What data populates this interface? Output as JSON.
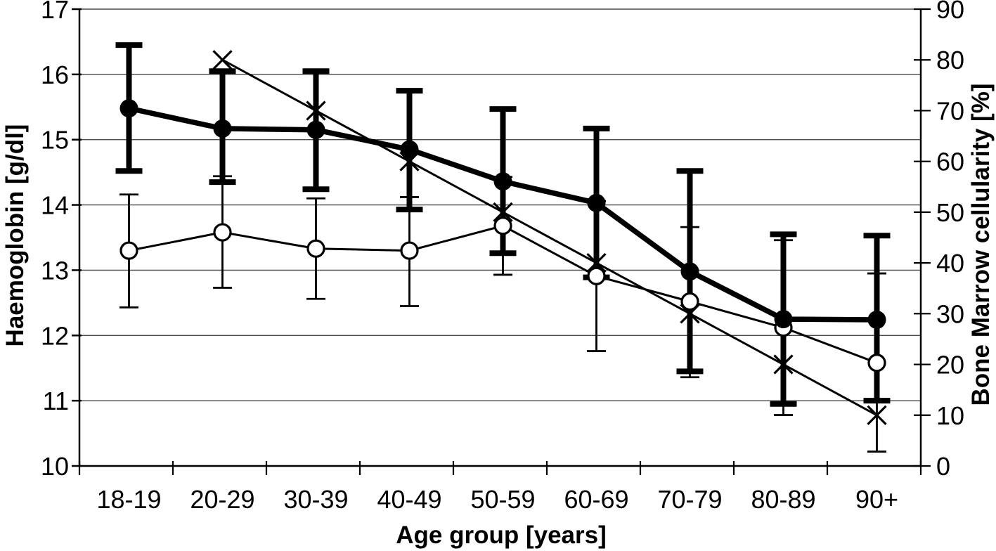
{
  "figure": {
    "background_color": "#ffffff",
    "ink_color": "#000000",
    "grid_color": "#4a4a4a"
  },
  "chart_data": {
    "type": "line",
    "title": "",
    "legend": "none",
    "grid": "horizontal",
    "x_axis": {
      "label": "Age group [years]",
      "categories": [
        "18-19",
        "20-29",
        "30-39",
        "40-49",
        "50-59",
        "60-69",
        "70-79",
        "80-89",
        "90+"
      ]
    },
    "y_axis_left": {
      "label": "Haemoglobin [g/dl]",
      "min": 10,
      "max": 17,
      "ticks": [
        10,
        11,
        12,
        13,
        14,
        15,
        16,
        17
      ]
    },
    "y_axis_right": {
      "label": "Bone Marrow cellularity [%]",
      "min": 0,
      "max": 90,
      "ticks": [
        0,
        10,
        20,
        30,
        40,
        50,
        60,
        70,
        80,
        90
      ]
    },
    "series": [
      {
        "id": "haemoglobin-filled-circle",
        "axis": "left",
        "marker": "filled-circle",
        "line_weight": "thick",
        "values": [
          15.48,
          15.17,
          15.15,
          14.85,
          14.36,
          14.03,
          12.98,
          12.25,
          12.24
        ],
        "err_low": [
          14.52,
          14.35,
          14.24,
          13.93,
          13.26,
          12.89,
          11.45,
          10.95,
          11.0
        ],
        "err_high": [
          16.45,
          16.05,
          16.05,
          15.75,
          15.47,
          15.17,
          14.52,
          13.55,
          13.53
        ]
      },
      {
        "id": "haemoglobin-open-circle",
        "axis": "left",
        "marker": "open-circle",
        "line_weight": "thin",
        "values": [
          13.3,
          13.58,
          13.33,
          13.3,
          13.68,
          12.91,
          12.52,
          12.12,
          11.58
        ],
        "err_low": [
          12.43,
          12.73,
          12.56,
          12.45,
          12.93,
          11.76,
          11.36,
          10.78,
          10.22
        ],
        "err_high": [
          14.16,
          14.44,
          14.1,
          14.12,
          14.43,
          14.06,
          13.66,
          13.46,
          12.95
        ]
      },
      {
        "id": "bone-marrow-cellularity-x",
        "axis": "right",
        "marker": "x",
        "line_weight": "thin",
        "values": [
          null,
          80,
          70,
          60,
          50,
          40,
          30,
          20,
          10
        ],
        "err_low": null,
        "err_high": null
      }
    ]
  }
}
